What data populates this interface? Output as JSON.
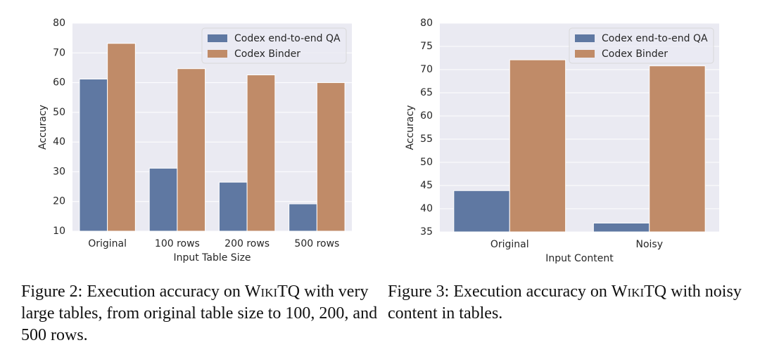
{
  "chart_data": [
    {
      "type": "bar",
      "xlabel": "Input Table Size",
      "ylabel": "Accuracy",
      "categories": [
        "Original",
        "100 rows",
        "200 rows",
        "500 rows"
      ],
      "series": [
        {
          "name": "Codex end-to-end QA",
          "color": "#5f78a2",
          "values": [
            61.2,
            31.2,
            26.5,
            19.2
          ]
        },
        {
          "name": "Codex Binder",
          "color": "#c08b68",
          "values": [
            73.2,
            64.7,
            62.6,
            60.0
          ]
        }
      ],
      "ylim": [
        10,
        80
      ],
      "yticks": [
        10,
        20,
        30,
        40,
        50,
        60,
        70,
        80
      ],
      "grid": true,
      "legend": "upper right",
      "caption": [
        "Figure 2: Execution accuracy on ",
        "WikiTQ",
        " with very large tables, from original table size to 100, 200, and 500 rows."
      ]
    },
    {
      "type": "bar",
      "xlabel": "Input Content",
      "ylabel": "Accuracy",
      "categories": [
        "Original",
        "Noisy"
      ],
      "series": [
        {
          "name": "Codex end-to-end QA",
          "color": "#5f78a2",
          "values": [
            43.9,
            36.9
          ]
        },
        {
          "name": "Codex Binder",
          "color": "#c08b68",
          "values": [
            72.1,
            70.8
          ]
        }
      ],
      "ylim": [
        35,
        80
      ],
      "yticks": [
        35,
        40,
        45,
        50,
        55,
        60,
        65,
        70,
        75,
        80
      ],
      "grid": true,
      "legend": "upper right",
      "caption": [
        "Figure 3: Execution accuracy on ",
        "WikiTQ",
        " with noisy content in tables."
      ]
    }
  ]
}
